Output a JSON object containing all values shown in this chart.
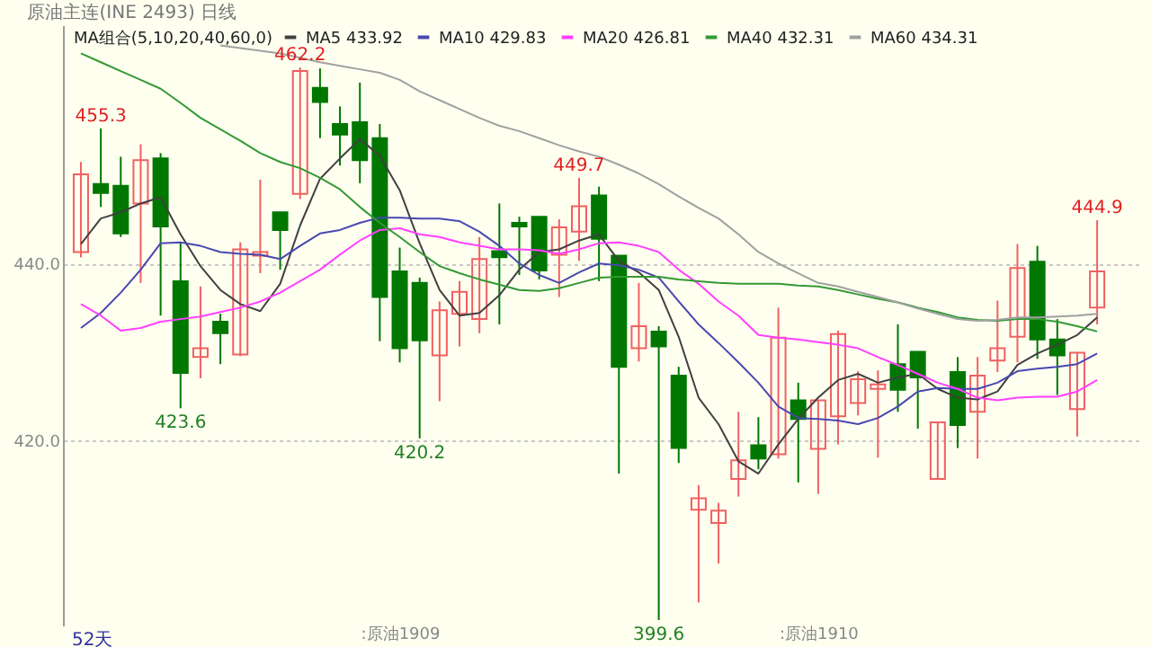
{
  "chart_data": {
    "type": "candlestick",
    "title": "原油主连(INE 2493)",
    "subtitle": "日线",
    "legend_title": "MA组合(5,10,20,40,60,0)",
    "categories": [
      null,
      null,
      null,
      null,
      null,
      null,
      null,
      null,
      null,
      null,
      null,
      null,
      null,
      null,
      null,
      null,
      ":原油1909",
      null,
      null,
      null,
      null,
      null,
      null,
      null,
      null,
      null,
      null,
      null,
      null,
      null,
      null,
      null,
      null,
      null,
      null,
      null,
      null,
      ":原油1910",
      null,
      null,
      null,
      null,
      null,
      null,
      null,
      null,
      null,
      null,
      null,
      null,
      null,
      null
    ],
    "ohlc": [
      [
        441.3,
        451.5,
        440.7,
        450.1
      ],
      [
        449.0,
        455.3,
        446.4,
        448.0
      ],
      [
        448.8,
        452.1,
        443.0,
        443.4
      ],
      [
        446.8,
        453.5,
        437.8,
        451.7
      ],
      [
        451.9,
        452.5,
        434.1,
        444.2
      ],
      [
        438.0,
        442.4,
        423.6,
        427.6
      ],
      [
        429.4,
        437.4,
        427.0,
        430.4
      ],
      [
        433.4,
        434.3,
        428.6,
        432.1
      ],
      [
        429.7,
        442.4,
        429.5,
        441.6
      ],
      [
        440.9,
        449.5,
        438.9,
        441.3
      ],
      [
        445.8,
        445.8,
        439.3,
        443.8
      ],
      [
        447.9,
        462.2,
        447.3,
        461.8
      ],
      [
        459.9,
        462.1,
        454.2,
        458.3
      ],
      [
        455.8,
        457.8,
        451.1,
        454.6
      ],
      [
        456.0,
        460.5,
        449.1,
        451.7
      ],
      [
        454.2,
        455.8,
        431.2,
        436.2
      ],
      [
        439.1,
        441.8,
        428.8,
        430.4
      ],
      [
        437.8,
        438.4,
        420.2,
        431.3
      ],
      [
        429.6,
        435.7,
        424.4,
        434.7
      ],
      [
        434.3,
        438.0,
        430.6,
        436.8
      ],
      [
        433.7,
        443.0,
        432.1,
        440.5
      ],
      [
        441.4,
        446.8,
        433.1,
        440.7
      ],
      [
        444.6,
        445.3,
        438.7,
        444.2
      ],
      [
        445.3,
        445.3,
        438.2,
        439.2
      ],
      [
        441.0,
        445.0,
        436.2,
        444.1
      ],
      [
        443.6,
        449.7,
        440.3,
        446.5
      ],
      [
        447.7,
        448.7,
        438.0,
        442.8
      ],
      [
        440.9,
        440.9,
        416.2,
        428.3
      ],
      [
        430.4,
        437.8,
        428.9,
        432.9
      ],
      [
        432.3,
        432.9,
        399.6,
        430.6
      ],
      [
        427.3,
        428.3,
        417.4,
        419.1
      ],
      [
        412.1,
        414.9,
        401.6,
        413.4
      ],
      [
        410.6,
        412.9,
        406.0,
        412.0
      ],
      [
        415.6,
        423.2,
        413.6,
        417.7
      ],
      [
        419.4,
        422.6,
        416.7,
        417.9
      ],
      [
        418.4,
        435.0,
        417.9,
        431.6
      ],
      [
        424.5,
        426.5,
        415.2,
        422.4
      ],
      [
        419.0,
        424.5,
        413.9,
        424.5
      ],
      [
        422.7,
        432.4,
        419.5,
        432.0
      ],
      [
        424.2,
        427.8,
        422.8,
        426.9
      ],
      [
        425.8,
        427.9,
        418.0,
        426.3
      ],
      [
        428.6,
        433.1,
        423.2,
        425.7
      ],
      [
        430.0,
        430.0,
        421.3,
        427.1
      ],
      [
        415.6,
        422.0,
        415.6,
        422.0
      ],
      [
        427.7,
        429.4,
        419.1,
        421.7
      ],
      [
        423.2,
        429.4,
        417.9,
        427.3
      ],
      [
        429.0,
        435.8,
        427.7,
        430.4
      ],
      [
        431.7,
        442.2,
        428.8,
        439.5
      ],
      [
        440.2,
        442.0,
        429.2,
        431.4
      ],
      [
        431.4,
        433.7,
        425.1,
        429.6
      ],
      [
        423.5,
        429.9,
        420.4,
        429.9
      ],
      [
        435.0,
        444.9,
        433.1,
        439.1
      ]
    ],
    "colors": [
      "#f06060",
      "#007700",
      "#007700",
      "#f06060",
      "#007700",
      "#007700",
      "#f06060",
      "#007700",
      "#f06060",
      "#f06060",
      "#007700",
      "#f06060",
      "#007700",
      "#007700",
      "#007700",
      "#007700",
      "#007700",
      "#007700",
      "#f06060",
      "#f06060",
      "#f06060",
      "#007700",
      "#007700",
      "#007700",
      "#f06060",
      "#f06060",
      "#007700",
      "#007700",
      "#f06060",
      "#007700",
      "#007700",
      "#f06060",
      "#f06060",
      "#f06060",
      "#007700",
      "#f06060",
      "#007700",
      "#f06060",
      "#f06060",
      "#f06060",
      "#f06060",
      "#007700",
      "#007700",
      "#f06060",
      "#007700",
      "#f06060",
      "#f06060",
      "#f06060",
      "#007700",
      "#007700",
      "#f06060",
      "#f06060"
    ],
    "series": [
      {
        "type": "line",
        "name": "MA5 433.92",
        "color": "#404040",
        "values": [
          442.2,
          445.1,
          445.8,
          446.8,
          447.5,
          443.3,
          439.7,
          437.0,
          435.4,
          434.6,
          437.7,
          444.3,
          449.6,
          451.9,
          454.1,
          452.2,
          448.3,
          442.3,
          437.0,
          434.1,
          434.4,
          436.4,
          439.3,
          441.3,
          441.6,
          442.6,
          443.3,
          440.3,
          439.0,
          437.0,
          431.7,
          424.8,
          421.8,
          417.6,
          416.2,
          419.5,
          422.4,
          424.8,
          426.8,
          427.5,
          426.5,
          427.1,
          427.5,
          425.8,
          424.8,
          424.6,
          425.5,
          428.5,
          429.8,
          430.8,
          431.9,
          433.9
        ]
      },
      {
        "type": "line",
        "name": "MA10 429.83",
        "color": "#4848b0",
        "values": [
          432.7,
          434.4,
          436.7,
          439.3,
          442.3,
          442.4,
          442.0,
          441.3,
          441.1,
          441.0,
          440.5,
          442.0,
          443.4,
          443.8,
          444.6,
          445.2,
          445.2,
          445.1,
          445.1,
          444.8,
          443.6,
          442.0,
          440.0,
          438.7,
          437.8,
          439.0,
          440.0,
          439.8,
          439.3,
          438.4,
          435.7,
          433.1,
          431.0,
          428.8,
          426.5,
          423.8,
          422.5,
          422.4,
          422.2,
          421.8,
          422.5,
          423.8,
          425.5,
          425.9,
          425.8,
          425.8,
          426.5,
          427.8,
          428.1,
          428.3,
          428.6,
          429.8
        ]
      },
      {
        "type": "line",
        "name": "MA20 426.81",
        "color": "#ff40ff",
        "values": [
          435.4,
          434.1,
          432.4,
          432.7,
          433.4,
          433.7,
          434.0,
          434.5,
          435.0,
          435.7,
          436.7,
          438.0,
          439.3,
          441.0,
          442.6,
          443.8,
          444.0,
          443.3,
          443.0,
          442.4,
          442.0,
          441.6,
          441.6,
          441.5,
          441.1,
          441.6,
          442.3,
          442.4,
          442.0,
          441.3,
          439.3,
          437.7,
          435.7,
          434.1,
          431.9,
          431.6,
          431.4,
          431.1,
          430.8,
          430.4,
          429.4,
          428.5,
          427.5,
          426.5,
          425.8,
          424.8,
          424.5,
          424.8,
          424.9,
          424.9,
          425.5,
          426.8
        ]
      },
      {
        "type": "line",
        "name": "MA40 432.31",
        "color": "#339933",
        "values": [
          463.8,
          462.8,
          461.8,
          460.8,
          459.8,
          458.2,
          456.5,
          455.2,
          453.9,
          452.5,
          451.5,
          450.8,
          449.7,
          448.4,
          446.4,
          444.6,
          443.0,
          441.3,
          439.7,
          438.9,
          438.2,
          437.6,
          437.0,
          436.9,
          437.2,
          437.8,
          438.4,
          438.5,
          438.5,
          438.5,
          438.2,
          438.0,
          437.8,
          437.7,
          437.7,
          437.7,
          437.5,
          437.4,
          437.0,
          436.5,
          436.0,
          435.6,
          435.0,
          434.5,
          433.9,
          433.6,
          433.5,
          433.7,
          433.7,
          433.4,
          432.9,
          432.3
        ]
      },
      {
        "type": "line",
        "name": "MA60 434.31",
        "color": "#a0a0a0",
        "values": [
          null,
          null,
          null,
          null,
          null,
          null,
          null,
          464.7,
          464.4,
          464.1,
          463.8,
          463.3,
          462.8,
          462.4,
          462.0,
          461.6,
          460.8,
          459.5,
          458.5,
          457.5,
          456.5,
          455.6,
          455.0,
          454.2,
          453.4,
          452.7,
          452.1,
          451.2,
          450.2,
          449.0,
          447.6,
          446.3,
          445.1,
          443.3,
          441.3,
          440.0,
          438.9,
          437.8,
          437.4,
          436.8,
          436.2,
          435.6,
          434.9,
          434.3,
          433.7,
          433.5,
          433.6,
          433.9,
          433.9,
          434.0,
          434.1,
          434.3
        ]
      }
    ],
    "ylim": [
      399,
      467
    ],
    "yticks": [
      {
        "value": 420,
        "label": "420.0"
      },
      {
        "value": 440,
        "label": "440.0"
      }
    ],
    "grid": "y",
    "legend": "top left",
    "annotations": [
      {
        "text": "455.3",
        "y": 455.3
      },
      {
        "text": "462.2",
        "y": 462.2
      },
      {
        "text": "423.6",
        "y": 423.6
      },
      {
        "text": "420.2",
        "y": 420.2
      },
      {
        "text": "449.7",
        "y": 449.7
      },
      {
        "text": "399.6",
        "y": 399.6
      },
      {
        "text": "444.9",
        "y": 444.9
      },
      "52天"
    ]
  }
}
